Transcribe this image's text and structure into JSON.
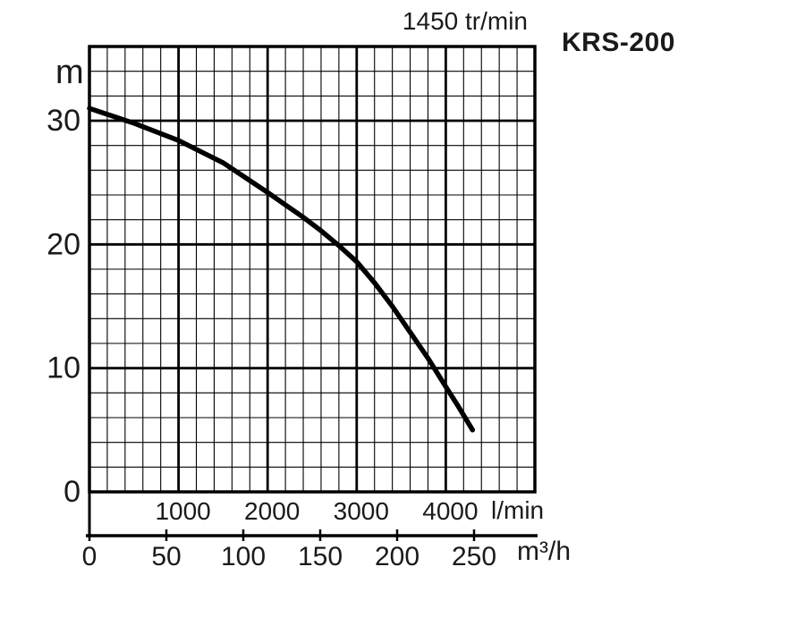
{
  "header": {
    "speed_label": "1450 tr/min",
    "model": "KRS-200"
  },
  "chart_data": {
    "type": "line",
    "title": "1450 tr/min",
    "subtitle": "KRS-200",
    "grid": "on",
    "legend": "none",
    "y_axis": {
      "unit": "m",
      "ticks": [
        0,
        10,
        20,
        30
      ],
      "range": [
        0,
        36
      ],
      "minor_step": 2,
      "major_step": 10
    },
    "x_axis_lmin": {
      "unit": "l/min",
      "ticks": [
        1000,
        2000,
        3000,
        4000
      ],
      "range": [
        0,
        5000
      ],
      "minor_step": 200,
      "major_step": 1000
    },
    "x_axis_m3h": {
      "unit": "m³/h",
      "ticks": [
        0,
        50,
        100,
        150,
        200,
        250
      ],
      "range": [
        0,
        290
      ]
    },
    "series": [
      {
        "name": "KRS-200 head-flow curve",
        "x_unit": "l/min",
        "y_unit": "m",
        "points": [
          [
            0,
            31.0
          ],
          [
            250,
            30.4
          ],
          [
            500,
            29.8
          ],
          [
            750,
            29.1
          ],
          [
            1000,
            28.4
          ],
          [
            1250,
            27.5
          ],
          [
            1500,
            26.6
          ],
          [
            1750,
            25.4
          ],
          [
            2000,
            24.2
          ],
          [
            2200,
            23.2
          ],
          [
            2400,
            22.2
          ],
          [
            2600,
            21.1
          ],
          [
            2800,
            19.9
          ],
          [
            3000,
            18.6
          ],
          [
            3200,
            16.9
          ],
          [
            3400,
            15.0
          ],
          [
            3600,
            12.9
          ],
          [
            3800,
            10.8
          ],
          [
            4000,
            8.5
          ],
          [
            4150,
            6.8
          ],
          [
            4300,
            5.0
          ]
        ]
      }
    ]
  }
}
